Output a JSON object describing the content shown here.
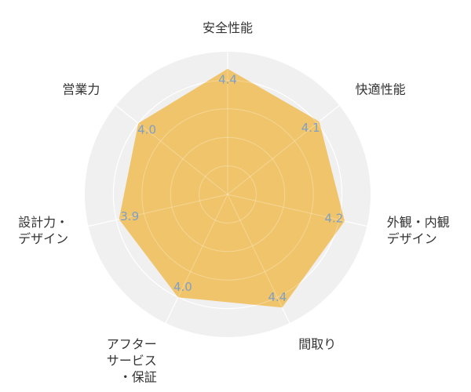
{
  "chart_data": {
    "type": "radar",
    "categories": [
      [
        "安全性能"
      ],
      [
        "快適性能"
      ],
      [
        "外観・内観",
        "デザイン"
      ],
      [
        "間取り"
      ],
      [
        "アフター",
        "サービス",
        "・保証"
      ],
      [
        "設計力・",
        "デザイン"
      ],
      [
        "営業力"
      ]
    ],
    "values": [
      4.4,
      4.1,
      4.2,
      4.4,
      4.0,
      3.9,
      4.0
    ],
    "value_labels": [
      "4.4",
      "4.1",
      "4.2",
      "4.4",
      "4.0",
      "3.9",
      "4.0"
    ],
    "rlim": [
      0,
      5
    ],
    "grid": true,
    "colors": {
      "fill": "#f0c060",
      "background": "#f0f0f0",
      "grid": "#ffffff",
      "value_text": "#7f9fc4",
      "label_text": "#333333"
    }
  }
}
